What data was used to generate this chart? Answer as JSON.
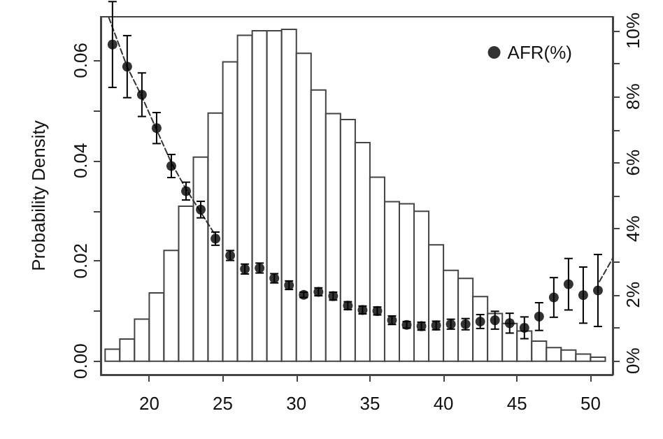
{
  "chart_data": {
    "type": "histogram",
    "ylabel": "Probability Density",
    "xlim": [
      16.7,
      51.5
    ],
    "xticks": [
      20,
      25,
      30,
      35,
      40,
      45,
      50
    ],
    "ylim": [
      -0.0027,
      0.0687
    ],
    "yticks": [
      {
        "value": 0,
        "label": "0.00"
      },
      {
        "value": 0.01,
        "label": null
      },
      {
        "value": 0.02,
        "label": "0.02"
      },
      {
        "value": 0.03,
        "label": null
      },
      {
        "value": 0.04,
        "label": "0.04"
      },
      {
        "value": 0.05,
        "label": null
      },
      {
        "value": 0.06,
        "label": "0.06"
      }
    ],
    "y2lim": [
      -0.42,
      10.42
    ],
    "y2ticks": [
      {
        "value": 0,
        "label": "0%"
      },
      {
        "value": 1,
        "label": null
      },
      {
        "value": 2,
        "label": "2%"
      },
      {
        "value": 3,
        "label": null
      },
      {
        "value": 4,
        "label": "4%"
      },
      {
        "value": 5,
        "label": null
      },
      {
        "value": 6,
        "label": "6%"
      },
      {
        "value": 7,
        "label": null
      },
      {
        "value": 8,
        "label": "8%"
      },
      {
        "value": 9,
        "label": null
      },
      {
        "value": 10,
        "label": "10%"
      }
    ],
    "grid": false,
    "legend": "top right",
    "marker": "circle",
    "series": [
      {
        "color": "#ffffff",
        "bins": [
          17,
          18,
          19,
          20,
          21,
          22,
          23,
          24,
          25,
          26,
          27,
          28,
          29,
          30,
          31,
          32,
          33,
          34,
          35,
          36,
          37,
          38,
          39,
          40,
          41,
          42,
          43,
          44,
          45,
          46,
          47,
          48,
          49,
          50,
          51
        ],
        "values": [
          0.0024,
          0.0044,
          0.0084,
          0.0136,
          0.0221,
          0.0309,
          0.0407,
          0.0495,
          0.0597,
          0.065,
          0.0659,
          0.0659,
          0.0662,
          0.0614,
          0.0541,
          0.0494,
          0.0482,
          0.0436,
          0.0367,
          0.0318,
          0.0314,
          0.0299,
          0.0232,
          0.0181,
          0.0165,
          0.0129,
          0.0095,
          0.0075,
          0.006,
          0.004,
          0.0027,
          0.0022,
          0.0014,
          0.0008
        ]
      },
      {
        "type": "scatter",
        "name": "AFR(%)",
        "axis": "y2",
        "color": "#000000",
        "x": [
          17.5,
          18.5,
          19.5,
          20.5,
          21.5,
          22.5,
          23.5,
          24.5,
          25.5,
          26.5,
          27.5,
          28.5,
          29.5,
          30.5,
          31.5,
          32.5,
          33.5,
          34.5,
          35.5,
          36.5,
          37.5,
          38.5,
          39.5,
          40.5,
          41.5,
          42.5,
          43.5,
          44.5,
          45.5,
          46.5,
          47.5,
          48.5,
          49.5,
          50.5
        ],
        "values": [
          9.58,
          8.91,
          8.06,
          7.05,
          5.9,
          5.14,
          4.58,
          3.7,
          3.19,
          2.78,
          2.81,
          2.5,
          2.29,
          2.0,
          2.09,
          1.96,
          1.67,
          1.54,
          1.51,
          1.23,
          1.09,
          1.05,
          1.07,
          1.11,
          1.11,
          1.19,
          1.23,
          1.14,
          1.0,
          1.34,
          1.92,
          2.32,
          1.99,
          2.13
        ],
        "errors": [
          1.3,
          0.94,
          0.66,
          0.47,
          0.35,
          0.27,
          0.25,
          0.2,
          0.15,
          0.15,
          0.15,
          0.14,
          0.13,
          0.08,
          0.12,
          0.12,
          0.12,
          0.12,
          0.12,
          0.13,
          0.1,
          0.12,
          0.13,
          0.15,
          0.17,
          0.21,
          0.27,
          0.3,
          0.33,
          0.42,
          0.6,
          0.78,
          0.85,
          1.09
        ]
      },
      {
        "type": "line",
        "axis": "y2",
        "color": "#333333",
        "line_style": "dashed",
        "marker": "none",
        "x": [
          17.25,
          18.5,
          19.5,
          20.5,
          21.5,
          22.5,
          23.5,
          24.5
        ],
        "values": [
          10.4,
          8.9,
          8.0,
          7.0,
          6.0,
          5.2,
          4.5,
          3.8
        ]
      },
      {
        "type": "line",
        "axis": "y2",
        "color": "#333333",
        "line_style": "dashed",
        "marker": "none",
        "x": [
          50.6,
          51.5
        ],
        "values": [
          2.4,
          3.1
        ]
      }
    ]
  }
}
